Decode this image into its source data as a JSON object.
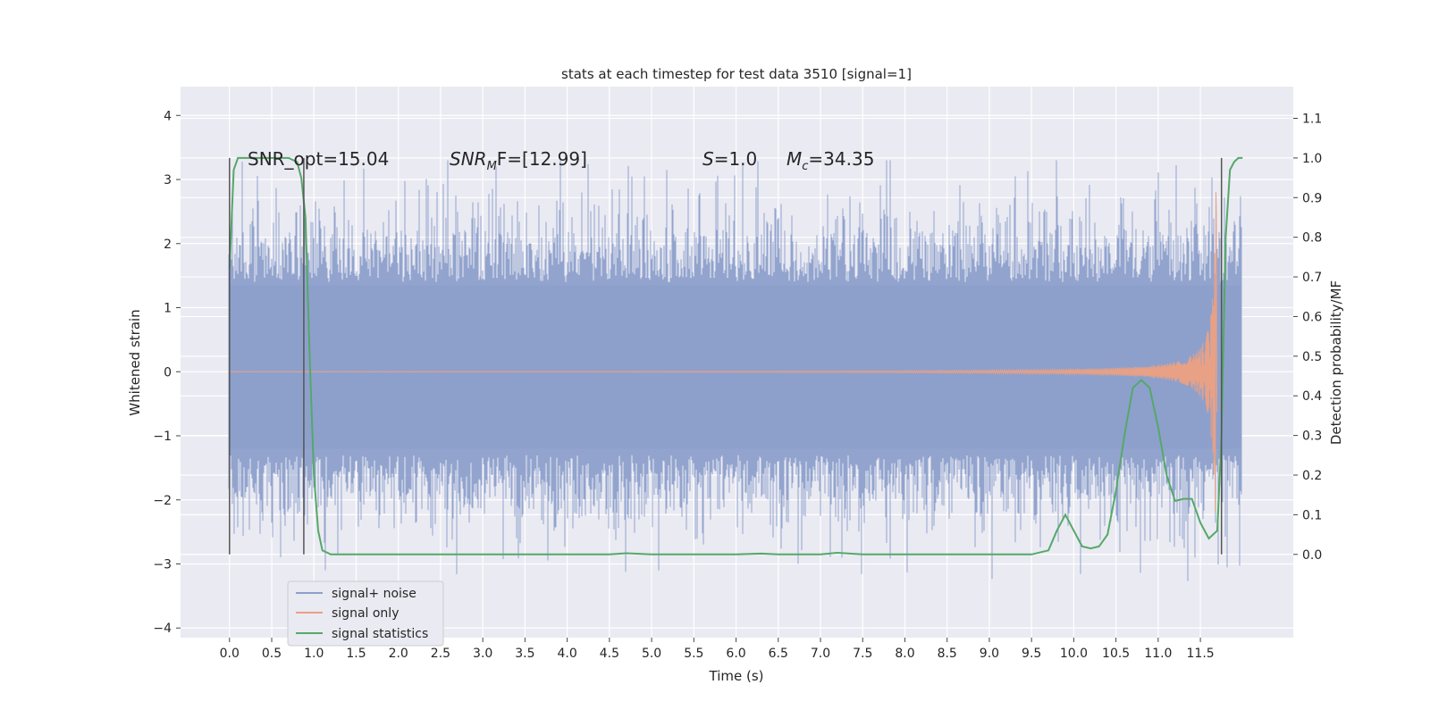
{
  "chart_data": {
    "type": "line",
    "title": "stats at each timestep for test data 3510 [signal=1]",
    "xlabel": "Time (s)",
    "ylabel_left": "Whitened strain",
    "ylabel_right": "Detection probability/MF",
    "xlim": [
      -0.58,
      12.6
    ],
    "ylim_left": [
      -4.15,
      4.45
    ],
    "ylim_right": [
      -0.21,
      1.18
    ],
    "xticks": [
      "0.0",
      "0.5",
      "1.0",
      "1.5",
      "2.0",
      "2.5",
      "3.0",
      "3.5",
      "4.0",
      "4.5",
      "5.0",
      "5.5",
      "6.0",
      "6.5",
      "7.0",
      "7.5",
      "8.0",
      "8.5",
      "9.0",
      "9.5",
      "10.0",
      "10.5",
      "11.0",
      "11.5"
    ],
    "yticks_left": [
      "−4",
      "−3",
      "−2",
      "−1",
      "0",
      "1",
      "2",
      "3",
      "4"
    ],
    "yticks_right": [
      "0.0",
      "0.1",
      "0.2",
      "0.3",
      "0.4",
      "0.5",
      "0.6",
      "0.7",
      "0.8",
      "0.9",
      "1.0",
      "1.1"
    ],
    "grid": true,
    "legend_position": "lower-left",
    "annotations": {
      "snr_opt": "SNR_opt=15.04",
      "snr_mf_symbol": "SNR",
      "snr_mf_sub": "M",
      "snr_mf_suffix": "F=[12.99]",
      "s_symbol": "S",
      "s_value": "=1.0",
      "mc_symbol": "M",
      "mc_sub": "c",
      "mc_value": "=34.35"
    },
    "series": [
      {
        "name": "signal+ noise",
        "axis": "left",
        "color": "#8da0cb",
        "description_range": [
          0,
          11.98
        ],
        "envelope_min": -2.5,
        "envelope_max": 2.5
      },
      {
        "name": "signal only",
        "axis": "left",
        "color": "#e8a185",
        "chirp_end": 11.7,
        "peak_amplitude": 3.2
      },
      {
        "name": "signal statistics",
        "axis": "right",
        "color": "#55a868",
        "x": [
          0.0,
          0.05,
          0.1,
          0.2,
          0.3,
          0.4,
          0.5,
          0.6,
          0.7,
          0.8,
          0.85,
          0.9,
          0.95,
          1.0,
          1.05,
          1.1,
          1.2,
          1.3,
          2.0,
          3.0,
          4.0,
          4.5,
          4.7,
          5.0,
          5.5,
          6.0,
          6.3,
          6.5,
          7.0,
          7.2,
          7.5,
          8.0,
          8.5,
          9.0,
          9.5,
          9.7,
          9.8,
          9.9,
          10.0,
          10.1,
          10.2,
          10.3,
          10.4,
          10.5,
          10.6,
          10.7,
          10.8,
          10.9,
          11.0,
          11.1,
          11.2,
          11.3,
          11.4,
          11.5,
          11.6,
          11.7,
          11.75,
          11.8,
          11.85,
          11.9,
          11.95,
          12.0
        ],
        "y": [
          0.72,
          0.97,
          1.0,
          1.0,
          1.0,
          1.0,
          1.0,
          1.0,
          1.0,
          0.99,
          0.95,
          0.85,
          0.5,
          0.2,
          0.06,
          0.01,
          0.0,
          0.0,
          0.0,
          0.0,
          0.0,
          0.0,
          0.003,
          0.0,
          0.0,
          0.0,
          0.002,
          0.0,
          0.0,
          0.004,
          0.0,
          0.0,
          0.0,
          0.0,
          0.0,
          0.01,
          0.06,
          0.1,
          0.06,
          0.02,
          0.015,
          0.02,
          0.05,
          0.16,
          0.3,
          0.42,
          0.44,
          0.42,
          0.32,
          0.2,
          0.135,
          0.14,
          0.14,
          0.08,
          0.04,
          0.06,
          0.3,
          0.8,
          0.97,
          0.99,
          1.0,
          1.0
        ]
      }
    ],
    "vertical_markers": [
      {
        "x": 0.0,
        "color": "#555555"
      },
      {
        "x": 0.88,
        "color": "#555555"
      },
      {
        "x": 11.75,
        "color": "#555555"
      }
    ]
  }
}
